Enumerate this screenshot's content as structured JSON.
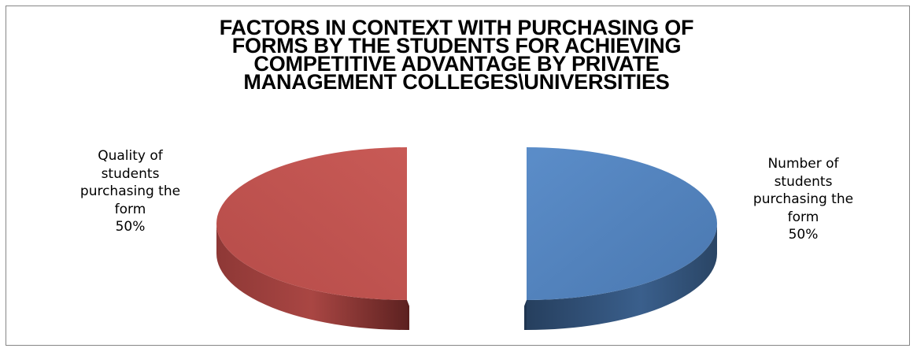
{
  "chart_data": {
    "type": "pie",
    "title_lines": [
      "FACTORS IN CONTEXT WITH PURCHASING OF",
      "FORMS BY THE STUDENTS FOR ACHIEVING",
      "COMPETITIVE  ADVANTAGE BY PRIVATE",
      "MANAGEMENT COLLEGES\\UNIVERSITIES"
    ],
    "slices": [
      {
        "label_lines": [
          "Number of",
          "students",
          "purchasing the",
          "form"
        ],
        "value": 50,
        "value_label": "50%",
        "color": "#4F81BD",
        "side_color": "#2F4D71"
      },
      {
        "label_lines": [
          "Quality of",
          "students",
          "purchasing the",
          "form"
        ],
        "value": 50,
        "value_label": "50%",
        "color": "#C0504D",
        "side_color": "#7A2E2C"
      }
    ],
    "style": "3d-exploded-pie",
    "legend": "none"
  }
}
